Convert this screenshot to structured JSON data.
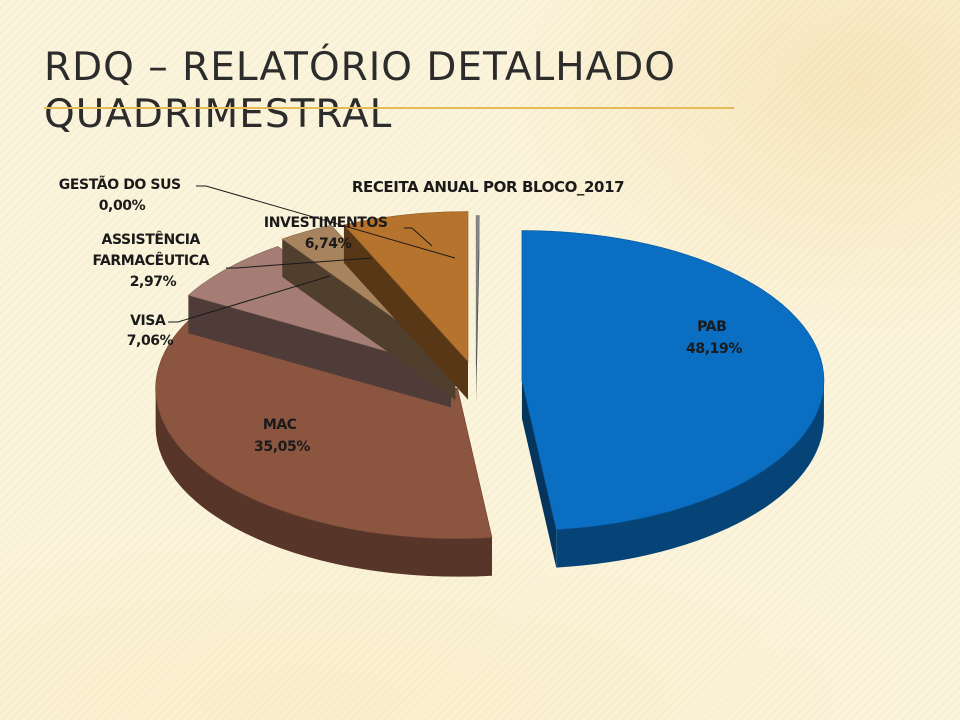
{
  "slide": {
    "title_line1": "RDQ – Relatório Detalhado",
    "title_line2": "Quadrimestral"
  },
  "chart_data": {
    "type": "pie",
    "title": "RECEITA ANUAL POR BLOCO_2017",
    "style": "3d-exploded",
    "slices": [
      {
        "name": "PAB",
        "percent_label": "48,19%",
        "value": 48.19,
        "color": "#0a6ec2"
      },
      {
        "name": "MAC",
        "percent_label": "35,05%",
        "value": 35.05,
        "color": "#8c5540"
      },
      {
        "name": "VISA",
        "percent_label": "7,06%",
        "value": 7.06,
        "color": "#a57d74"
      },
      {
        "name": "ASSISTÊNCIA FARMACÊUTICA",
        "name_line1": "ASSISTÊNCIA",
        "name_line2": "FARMACÊUTICA",
        "percent_label": "2,97%",
        "value": 2.97,
        "color": "#a8845e"
      },
      {
        "name": "INVESTIMENTOS",
        "percent_label": "6,74%",
        "value": 6.74,
        "color": "#b6732d"
      },
      {
        "name": "GESTÃO DO SUS",
        "percent_label": "0,00%",
        "value": 0.0,
        "color": "#8a8a8a"
      }
    ]
  }
}
